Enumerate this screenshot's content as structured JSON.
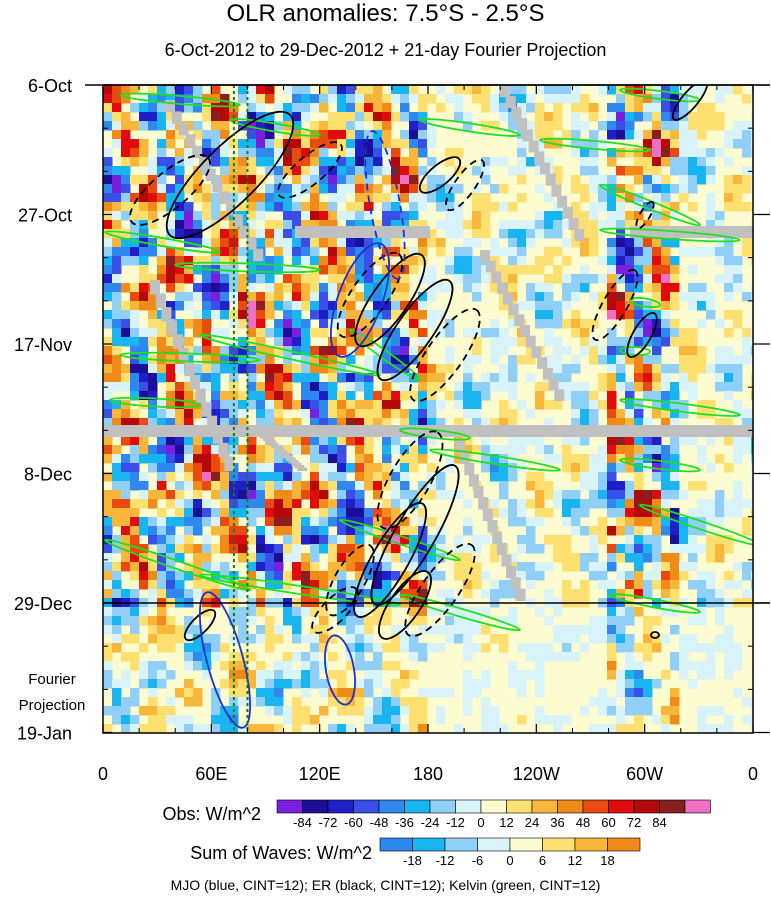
{
  "title": "OLR anomalies: 7.5°S - 2.5°S",
  "subtitle": "6-Oct-2012 to 29-Dec-2012 + 21-day Fourier Projection",
  "fourier_label_line1": "Fourier",
  "fourier_label_line2": "Projection",
  "footer": "MJO (blue, CINT=12); ER (black, CINT=12); Kelvin (green, CINT=12)",
  "colors": {
    "mjo": "#1f2fd0",
    "er": "#000000",
    "kelvin": "#1ee01e",
    "missing": "#c0c0c0"
  },
  "chart_data": {
    "type": "heatmap",
    "title": "OLR anomalies: 7.5°S - 2.5°S",
    "subtitle": "6-Oct-2012 to 29-Dec-2012 + 21-day Fourier Projection",
    "x_axis": {
      "ticks": [
        "0",
        "60E",
        "120E",
        "180",
        "120W",
        "60W",
        "0"
      ],
      "range_deg_east": [
        0,
        360
      ]
    },
    "y_axis": {
      "ticks": [
        "6-Oct",
        "27-Oct",
        "17-Nov",
        "8-Dec",
        "29-Dec",
        "19-Jan"
      ],
      "direction": "time increases downward"
    },
    "observation_end": "29-Dec",
    "reference_meridians_deg_east": [
      72.5,
      80
    ],
    "legend_obs": {
      "label": "Obs: W/m^2",
      "levels": [
        "-84",
        "-72",
        "-60",
        "-48",
        "-36",
        "-24",
        "-12",
        "0",
        "12",
        "24",
        "36",
        "48",
        "60",
        "72",
        "84"
      ],
      "colors": [
        "#7a1fe0",
        "#1a0f96",
        "#1f1fc8",
        "#3a4fe8",
        "#2f88ee",
        "#19b5f0",
        "#8fcff8",
        "#d8f4fa",
        "#fcfcd0",
        "#fde070",
        "#f8b63a",
        "#f08a18",
        "#e84a10",
        "#e00c0c",
        "#b50808",
        "#8a1f1f",
        "#f070c8"
      ]
    },
    "legend_waves": {
      "label": "Sum of Waves: W/m^2",
      "levels": [
        "-18",
        "-12",
        "-6",
        "0",
        "6",
        "12",
        "18"
      ],
      "colors": [
        "#2f88ee",
        "#19b5f0",
        "#8fcff8",
        "#d8f4fa",
        "#fcfcd0",
        "#fde070",
        "#f8b63a",
        "#f08a18"
      ]
    },
    "series": [
      {
        "name": "MJO",
        "color": "blue",
        "cint": 12
      },
      {
        "name": "ER",
        "color": "black",
        "cint": 12
      },
      {
        "name": "Kelvin",
        "color": "green",
        "cint": 12
      }
    ]
  }
}
